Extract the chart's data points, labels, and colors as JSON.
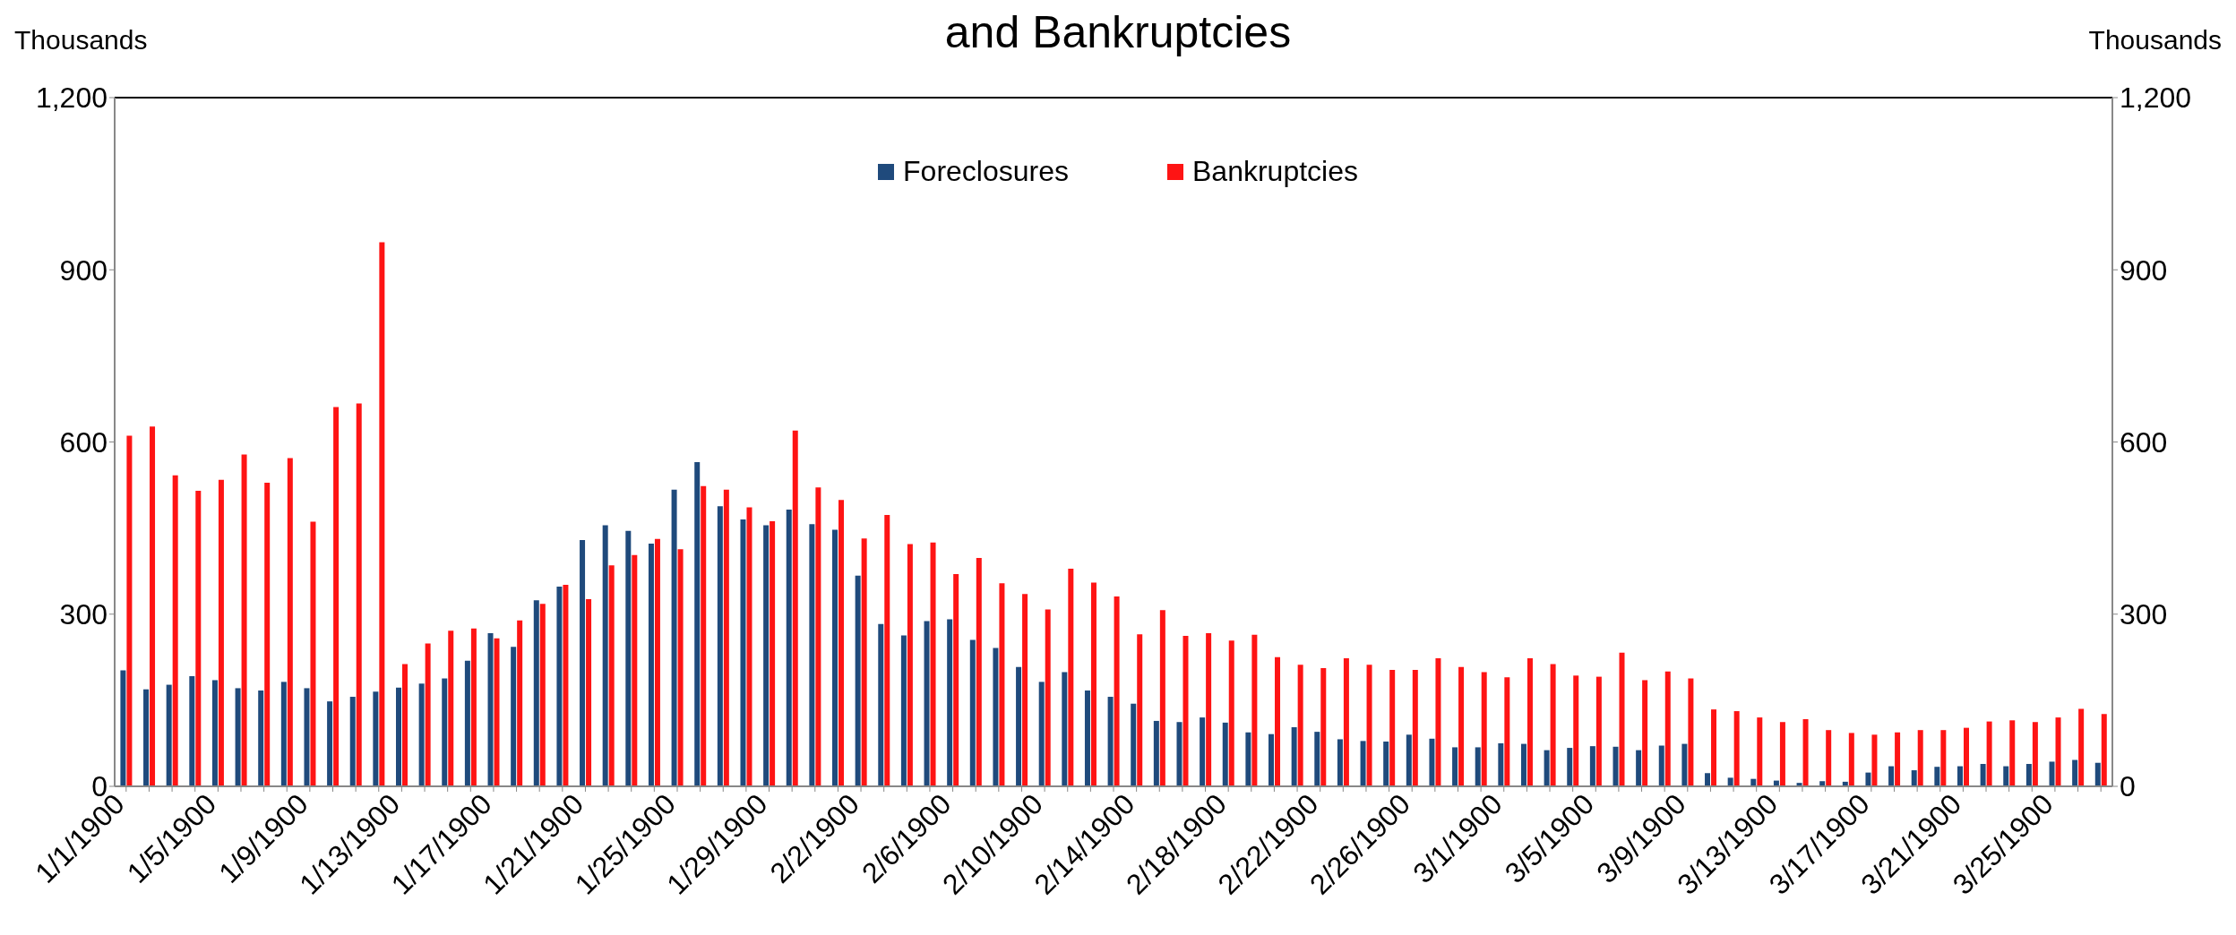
{
  "chart_data": {
    "type": "bar",
    "title": "and Bankruptcies",
    "ylabel": "Thousands",
    "y2label": "Thousands",
    "categories": [
      "1/1/1900",
      null,
      null,
      null,
      "1/5/1900",
      null,
      null,
      null,
      "1/9/1900",
      null,
      null,
      null,
      "1/13/1900",
      null,
      null,
      null,
      "1/17/1900",
      null,
      null,
      null,
      "1/21/1900",
      null,
      null,
      null,
      "1/25/1900",
      null,
      null,
      null,
      "1/29/1900",
      null,
      null,
      null,
      "2/2/1900",
      null,
      null,
      null,
      "2/6/1900",
      null,
      null,
      null,
      "2/10/1900",
      null,
      null,
      null,
      "2/14/1900",
      null,
      null,
      null,
      "2/18/1900",
      null,
      null,
      null,
      "2/22/1900",
      null,
      null,
      null,
      "2/26/1900",
      null,
      null,
      null,
      "3/1/1900",
      null,
      null,
      null,
      "3/5/1900",
      null,
      null,
      null,
      "3/9/1900",
      null,
      null,
      null,
      "3/13/1900",
      null,
      null,
      null,
      "3/17/1900",
      null,
      null,
      null,
      "3/21/1900",
      null,
      null,
      null,
      "3/25/1900",
      null,
      null
    ],
    "series": [
      {
        "name": "Foreclosures",
        "color": "#1f4a7c",
        "values": [
          202,
          169,
          177,
          192,
          185,
          171,
          167,
          182,
          171,
          148,
          156,
          165,
          172,
          179,
          188,
          219,
          267,
          243,
          324,
          348,
          429,
          455,
          445,
          423,
          517,
          565,
          488,
          465,
          455,
          482,
          457,
          447,
          367,
          283,
          263,
          288,
          291,
          255,
          241,
          208,
          182,
          199,
          167,
          156,
          144,
          114,
          112,
          120,
          111,
          94,
          91,
          103,
          95,
          82,
          79,
          78,
          90,
          83,
          68,
          68,
          75,
          74,
          63,
          67,
          70,
          69,
          63,
          71,
          74,
          23,
          15,
          13,
          10,
          6,
          9,
          8,
          24,
          35,
          28,
          34,
          35,
          39,
          35,
          39,
          43,
          46,
          41
        ]
      },
      {
        "name": "Bankruptcies",
        "color": "#fe1414",
        "values": [
          611,
          627,
          542,
          515,
          534,
          578,
          529,
          572,
          461,
          661,
          667,
          948,
          213,
          249,
          271,
          275,
          258,
          289,
          318,
          351,
          326,
          385,
          403,
          431,
          413,
          523,
          517,
          486,
          462,
          620,
          521,
          499,
          432,
          473,
          422,
          425,
          370,
          398,
          354,
          335,
          308,
          379,
          355,
          331,
          265,
          307,
          262,
          267,
          254,
          264,
          225,
          212,
          206,
          223,
          212,
          203,
          203,
          223,
          208,
          199,
          190,
          223,
          213,
          193,
          191,
          233,
          185,
          200,
          188,
          134,
          131,
          120,
          112,
          117,
          98,
          93,
          90,
          94,
          98,
          98,
          102,
          113,
          115,
          112,
          120,
          135,
          126
        ]
      }
    ],
    "ylim": [
      0,
      1200
    ],
    "yticks": [
      0,
      300,
      600,
      900,
      {
        "value": 1200,
        "label": "1,200"
      }
    ],
    "y2lim": [
      0,
      1200
    ],
    "y2ticks": [
      0,
      300,
      600,
      900,
      {
        "value": 1200,
        "label": "1,200"
      }
    ],
    "grid": false,
    "legend": "top"
  }
}
